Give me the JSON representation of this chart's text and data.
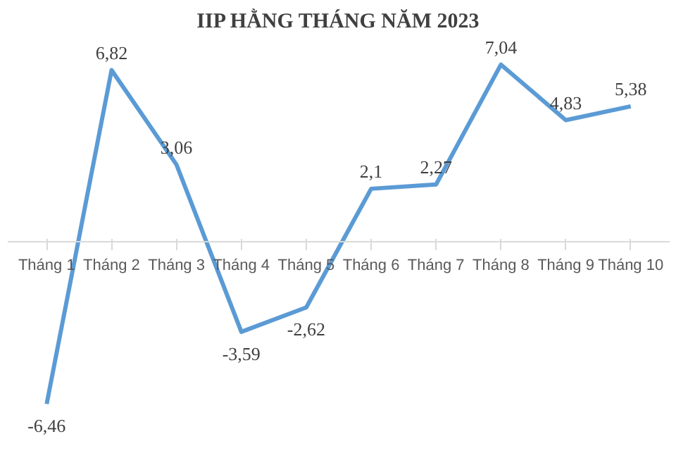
{
  "chart_data": {
    "type": "line",
    "title": "IIP HẰNG THÁNG NĂM 2023",
    "categories": [
      "Tháng 1",
      "Tháng 2",
      "Tháng 3",
      "Tháng 4",
      "Tháng 5",
      "Tháng 6",
      "Tháng 7",
      "Tháng 8",
      "Tháng 9",
      "Tháng 10"
    ],
    "series": [
      {
        "color": "#5b9bd5",
        "values": [
          -6.46,
          6.82,
          3.06,
          -3.59,
          -2.62,
          2.1,
          2.27,
          7.04,
          4.83,
          5.38
        ],
        "value_labels": [
          "-6,46",
          "6,82",
          "3,06",
          "-3,59",
          "-2,62",
          "2,1",
          "2,27",
          "7,04",
          "4,83",
          "5,38"
        ]
      }
    ],
    "marker": "none",
    "line_style": "solid"
  }
}
